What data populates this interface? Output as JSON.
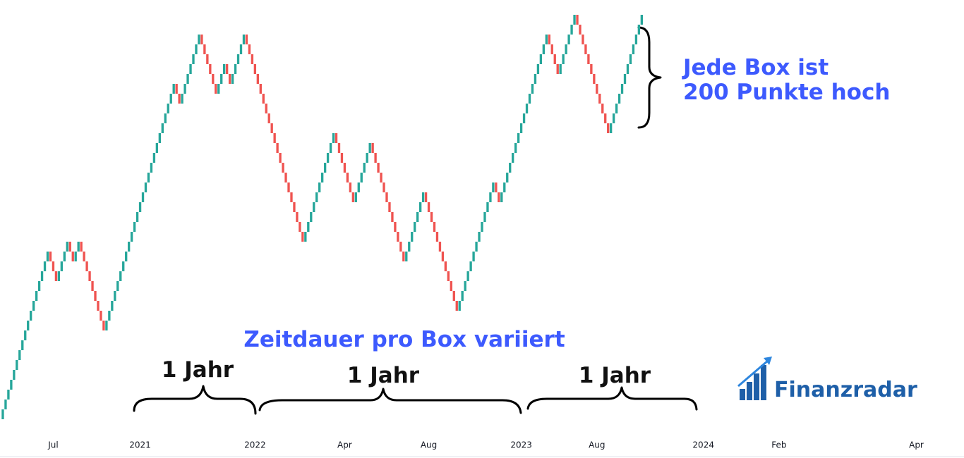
{
  "chart_data": {
    "type": "renko",
    "up_color": "#26a69a",
    "down_color": "#ef5350",
    "xlim": [
      0,
      344
    ],
    "ylim": [
      0,
      8400
    ],
    "xticks": [
      {
        "value": 19,
        "label": "Jul"
      },
      {
        "value": 50,
        "label": "2021"
      },
      {
        "value": 91,
        "label": "2022"
      },
      {
        "value": 123,
        "label": "Apr"
      },
      {
        "value": 153,
        "label": "Aug"
      },
      {
        "value": 186,
        "label": "2023"
      },
      {
        "value": 213,
        "label": "Aug"
      },
      {
        "value": 251,
        "label": "2024"
      },
      {
        "value": 278,
        "label": "Feb"
      },
      {
        "value": 327,
        "label": "Apr"
      }
    ],
    "values": [
      0,
      200,
      400,
      600,
      800,
      1000,
      1200,
      1400,
      1600,
      1800,
      2000,
      2200,
      2400,
      2600,
      2800,
      3000,
      3200,
      3400,
      3200,
      3000,
      2800,
      3000,
      3200,
      3400,
      3600,
      3400,
      3200,
      3400,
      3600,
      3400,
      3200,
      3000,
      2800,
      2600,
      2400,
      2200,
      2000,
      1800,
      2000,
      2200,
      2400,
      2600,
      2800,
      3000,
      3200,
      3400,
      3600,
      3800,
      4000,
      4200,
      4400,
      4600,
      4800,
      5000,
      5200,
      5400,
      5600,
      5800,
      6000,
      6200,
      6400,
      6600,
      6800,
      6600,
      6400,
      6600,
      6800,
      7000,
      7200,
      7400,
      7600,
      7800,
      7600,
      7400,
      7200,
      7000,
      6800,
      6600,
      6800,
      7000,
      7200,
      7000,
      6800,
      7000,
      7200,
      7400,
      7600,
      7800,
      7600,
      7400,
      7200,
      7000,
      6800,
      6600,
      6400,
      6200,
      6000,
      5800,
      5600,
      5400,
      5200,
      5000,
      4800,
      4600,
      4400,
      4200,
      4000,
      3800,
      3600,
      3800,
      4000,
      4200,
      4400,
      4600,
      4800,
      5000,
      5200,
      5400,
      5600,
      5800,
      5600,
      5400,
      5200,
      5000,
      4800,
      4600,
      4400,
      4600,
      4800,
      5000,
      5200,
      5400,
      5600,
      5400,
      5200,
      5000,
      4800,
      4600,
      4400,
      4200,
      4000,
      3800,
      3600,
      3400,
      3200,
      3400,
      3600,
      3800,
      4000,
      4200,
      4400,
      4600,
      4400,
      4200,
      4000,
      3800,
      3600,
      3400,
      3200,
      3000,
      2800,
      2600,
      2400,
      2200,
      2400,
      2600,
      2800,
      3000,
      3200,
      3400,
      3600,
      3800,
      4000,
      4200,
      4400,
      4600,
      4800,
      4600,
      4400,
      4600,
      4800,
      5000,
      5200,
      5400,
      5600,
      5800,
      6000,
      6200,
      6400,
      6600,
      6800,
      7000,
      7200,
      7400,
      7600,
      7800,
      7600,
      7400,
      7200,
      7000,
      7200,
      7400,
      7600,
      7800,
      8000,
      8200,
      8000,
      7800,
      7600,
      7400,
      7200,
      7000,
      6800,
      6600,
      6400,
      6200,
      6000,
      5800,
      6000,
      6200,
      6400,
      6600,
      6800,
      7000,
      7200,
      7400,
      7600,
      7800,
      8000,
      8200
    ],
    "annotations": {
      "box_height": [
        "Jede Box ist",
        "200 Punkte hoch"
      ],
      "duration": "Zeitdauer pro Box variiert",
      "periods": [
        "1 Jahr",
        "1 Jahr",
        "1 Jahr"
      ]
    },
    "logo": "Finanzradar"
  }
}
